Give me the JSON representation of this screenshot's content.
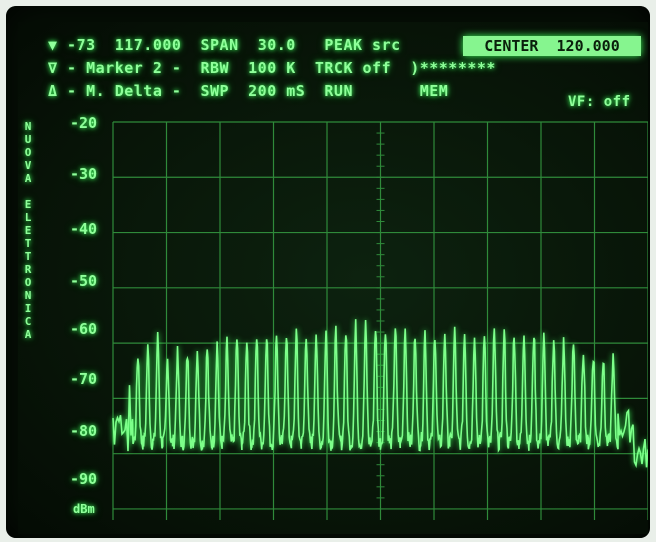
{
  "header": {
    "row1": [
      "▼ -73",
      "117.000",
      "SPAN",
      "30.0",
      "PEAK src"
    ],
    "row2": [
      "∇ - Marker 2 -",
      "RBW",
      "100 K",
      "TRCK off",
      ")********"
    ],
    "row3": [
      "Δ - M. Delta -",
      "SWP",
      "200 mS",
      "RUN",
      "MEM",
      "VF: off"
    ],
    "center": "CENTER  120.000"
  },
  "side_text": [
    "N",
    "U",
    "O",
    "V",
    "A",
    "",
    "E",
    "L",
    "E",
    "T",
    "T",
    "R",
    "O",
    "N",
    "I",
    "C",
    "A"
  ],
  "y_labels": [
    "-20",
    "-30",
    "-40",
    "-50",
    "-60",
    "-70",
    "-80",
    "-90"
  ],
  "y_unit": "dBm",
  "colors": {
    "trace": "#7dff8a",
    "grid": "#2f8a3a",
    "bg": "#071307"
  },
  "chart_data": {
    "type": "line",
    "ylim": [
      -92,
      -20
    ],
    "x_span_mhz": 30.0,
    "x_center_mhz": 120.0,
    "grid": true,
    "peaks": [
      -62,
      -61,
      -59,
      -63,
      -62,
      -62,
      -61,
      -61,
      -60,
      -60,
      -59,
      -59,
      -59,
      -58,
      -58,
      -58,
      -58,
      -58,
      -58,
      -58,
      -58,
      -58,
      -57,
      -57,
      -57,
      -57,
      -57,
      -57,
      -58,
      -58,
      -58,
      -58,
      -58,
      -58,
      -58,
      -58,
      -58,
      -58,
      -58,
      -58,
      -58,
      -59,
      -59,
      -60,
      -60,
      -61,
      -62,
      -63,
      -63
    ],
    "noise_floor": -78
  }
}
